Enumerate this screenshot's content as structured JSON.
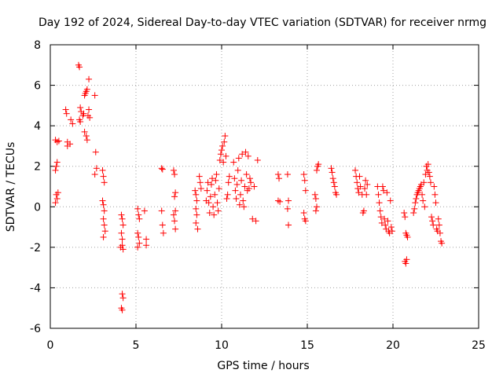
{
  "chart_data": {
    "type": "scatter",
    "title": "Day 192 of 2024, Sidereal Day-to-day VTEC variation (SDTVAR) for receiver nrmg",
    "xlabel": "GPS time / hours",
    "ylabel": "SDTVAR / TECUs",
    "xlim": [
      0,
      25
    ],
    "ylim": [
      -6,
      8
    ],
    "xticks": [
      0,
      5,
      10,
      15,
      20,
      25
    ],
    "yticks": [
      -6,
      -4,
      -2,
      0,
      2,
      4,
      6,
      8
    ],
    "grid": true,
    "marker": "+",
    "color": "#ff0000",
    "series": [
      {
        "name": "SDTVAR",
        "points": [
          [
            0.3,
            1.8
          ],
          [
            0.35,
            2.0
          ],
          [
            0.4,
            2.2
          ],
          [
            0.3,
            3.3
          ],
          [
            0.4,
            3.2
          ],
          [
            0.5,
            3.25
          ],
          [
            0.35,
            0.6
          ],
          [
            0.4,
            0.4
          ],
          [
            0.45,
            0.7
          ],
          [
            0.3,
            0.2
          ],
          [
            0.9,
            4.8
          ],
          [
            0.95,
            4.6
          ],
          [
            1.0,
            3.2
          ],
          [
            1.0,
            3.0
          ],
          [
            1.2,
            4.3
          ],
          [
            1.3,
            4.1
          ],
          [
            1.15,
            3.1
          ],
          [
            1.65,
            7.0
          ],
          [
            1.7,
            6.9
          ],
          [
            1.75,
            4.9
          ],
          [
            1.7,
            4.3
          ],
          [
            1.75,
            4.2
          ],
          [
            1.8,
            4.7
          ],
          [
            1.9,
            4.5
          ],
          [
            1.95,
            4.6
          ],
          [
            2.0,
            5.5
          ],
          [
            2.05,
            5.6
          ],
          [
            2.1,
            5.7
          ],
          [
            2.15,
            5.8
          ],
          [
            2.2,
            4.5
          ],
          [
            2.25,
            4.8
          ],
          [
            2.3,
            4.4
          ],
          [
            2.0,
            3.7
          ],
          [
            2.1,
            3.5
          ],
          [
            2.15,
            3.3
          ],
          [
            2.25,
            6.3
          ],
          [
            2.6,
            5.5
          ],
          [
            2.65,
            2.7
          ],
          [
            2.7,
            1.9
          ],
          [
            2.6,
            1.6
          ],
          [
            3.05,
            1.8
          ],
          [
            3.1,
            1.5
          ],
          [
            3.15,
            1.2
          ],
          [
            3.05,
            0.3
          ],
          [
            3.1,
            0.1
          ],
          [
            3.15,
            -0.2
          ],
          [
            3.1,
            -0.6
          ],
          [
            3.15,
            -0.9
          ],
          [
            3.2,
            -1.2
          ],
          [
            3.1,
            -1.5
          ],
          [
            4.15,
            -0.4
          ],
          [
            4.2,
            -0.6
          ],
          [
            4.25,
            -0.9
          ],
          [
            4.15,
            -1.3
          ],
          [
            4.2,
            -1.6
          ],
          [
            4.2,
            -1.9
          ],
          [
            4.25,
            -2.1
          ],
          [
            4.1,
            -2.0
          ],
          [
            4.2,
            -4.3
          ],
          [
            4.25,
            -4.5
          ],
          [
            4.15,
            -5.0
          ],
          [
            4.2,
            -5.1
          ],
          [
            5.1,
            -0.1
          ],
          [
            5.15,
            -0.4
          ],
          [
            5.2,
            -0.6
          ],
          [
            5.1,
            -1.3
          ],
          [
            5.15,
            -1.5
          ],
          [
            5.2,
            -1.8
          ],
          [
            5.1,
            -2.0
          ],
          [
            5.5,
            -0.2
          ],
          [
            5.6,
            -1.6
          ],
          [
            5.6,
            -1.9
          ],
          [
            6.5,
            -0.2
          ],
          [
            6.55,
            -0.9
          ],
          [
            6.6,
            -1.3
          ],
          [
            6.5,
            1.9
          ],
          [
            6.55,
            1.85
          ],
          [
            7.2,
            1.8
          ],
          [
            7.25,
            1.6
          ],
          [
            7.3,
            0.7
          ],
          [
            7.25,
            0.5
          ],
          [
            7.3,
            -0.2
          ],
          [
            7.2,
            -0.4
          ],
          [
            7.25,
            -0.7
          ],
          [
            7.3,
            -1.1
          ],
          [
            8.45,
            0.8
          ],
          [
            8.5,
            0.6
          ],
          [
            8.55,
            0.3
          ],
          [
            8.5,
            -0.1
          ],
          [
            8.55,
            -0.4
          ],
          [
            8.5,
            -0.8
          ],
          [
            8.6,
            -1.1
          ],
          [
            8.7,
            1.5
          ],
          [
            8.75,
            1.2
          ],
          [
            8.8,
            0.9
          ],
          [
            9.1,
            0.3
          ],
          [
            9.15,
            0.8
          ],
          [
            9.2,
            1.2
          ],
          [
            9.25,
            0.2
          ],
          [
            9.3,
            -0.3
          ],
          [
            9.35,
            0.5
          ],
          [
            9.4,
            1.1
          ],
          [
            9.45,
            1.4
          ],
          [
            9.5,
            0.0
          ],
          [
            9.55,
            -0.4
          ],
          [
            9.6,
            0.6
          ],
          [
            9.65,
            1.3
          ],
          [
            9.7,
            1.6
          ],
          [
            9.75,
            0.2
          ],
          [
            9.8,
            -0.2
          ],
          [
            9.85,
            0.9
          ],
          [
            9.9,
            2.3
          ],
          [
            9.95,
            2.6
          ],
          [
            10.0,
            2.8
          ],
          [
            10.05,
            3.0
          ],
          [
            10.1,
            2.2
          ],
          [
            10.15,
            3.2
          ],
          [
            10.2,
            3.5
          ],
          [
            10.25,
            2.5
          ],
          [
            10.3,
            0.4
          ],
          [
            10.35,
            0.6
          ],
          [
            10.4,
            1.2
          ],
          [
            10.45,
            1.5
          ],
          [
            10.7,
            2.2
          ],
          [
            10.75,
            1.4
          ],
          [
            10.8,
            0.8
          ],
          [
            10.85,
            0.4
          ],
          [
            10.9,
            1.1
          ],
          [
            10.95,
            1.8
          ],
          [
            11.0,
            2.4
          ],
          [
            11.05,
            0.1
          ],
          [
            11.1,
            0.6
          ],
          [
            11.15,
            1.3
          ],
          [
            11.2,
            2.6
          ],
          [
            11.25,
            0.3
          ],
          [
            11.3,
            0.0
          ],
          [
            11.35,
            1.0
          ],
          [
            11.4,
            2.7
          ],
          [
            11.45,
            1.6
          ],
          [
            11.5,
            0.8
          ],
          [
            11.55,
            2.5
          ],
          [
            11.6,
            0.9
          ],
          [
            11.65,
            1.4
          ],
          [
            11.7,
            1.2
          ],
          [
            11.8,
            -0.6
          ],
          [
            11.9,
            1.0
          ],
          [
            12.0,
            -0.7
          ],
          [
            12.1,
            2.3
          ],
          [
            13.3,
            1.6
          ],
          [
            13.35,
            1.4
          ],
          [
            13.3,
            0.3
          ],
          [
            13.4,
            0.25
          ],
          [
            13.85,
            1.6
          ],
          [
            13.9,
            0.3
          ],
          [
            13.85,
            -0.1
          ],
          [
            13.9,
            -0.9
          ],
          [
            14.8,
            1.6
          ],
          [
            14.85,
            1.3
          ],
          [
            14.9,
            0.8
          ],
          [
            14.8,
            -0.3
          ],
          [
            14.85,
            -0.6
          ],
          [
            14.9,
            -0.7
          ],
          [
            15.45,
            0.6
          ],
          [
            15.5,
            0.4
          ],
          [
            15.55,
            0.0
          ],
          [
            15.5,
            -0.2
          ],
          [
            15.55,
            1.8
          ],
          [
            15.6,
            2.0
          ],
          [
            15.65,
            2.1
          ],
          [
            16.4,
            1.9
          ],
          [
            16.45,
            1.7
          ],
          [
            16.5,
            1.4
          ],
          [
            16.55,
            1.2
          ],
          [
            16.6,
            1.0
          ],
          [
            16.65,
            0.7
          ],
          [
            16.7,
            0.6
          ],
          [
            17.8,
            1.8
          ],
          [
            17.85,
            1.5
          ],
          [
            17.9,
            1.2
          ],
          [
            17.95,
            0.9
          ],
          [
            18.0,
            0.7
          ],
          [
            18.05,
            1.5
          ],
          [
            18.1,
            1.0
          ],
          [
            18.2,
            0.6
          ],
          [
            18.25,
            -0.3
          ],
          [
            18.3,
            -0.2
          ],
          [
            18.35,
            0.9
          ],
          [
            18.4,
            1.3
          ],
          [
            18.45,
            0.6
          ],
          [
            18.5,
            1.1
          ],
          [
            19.1,
            1.0
          ],
          [
            19.15,
            0.6
          ],
          [
            19.2,
            0.2
          ],
          [
            19.25,
            -0.2
          ],
          [
            19.3,
            -0.5
          ],
          [
            19.35,
            -0.8
          ],
          [
            19.4,
            1.0
          ],
          [
            19.45,
            0.8
          ],
          [
            19.5,
            -0.6
          ],
          [
            19.55,
            -0.9
          ],
          [
            19.6,
            -1.1
          ],
          [
            19.65,
            0.7
          ],
          [
            19.7,
            -0.7
          ],
          [
            19.75,
            -1.2
          ],
          [
            19.8,
            -1.3
          ],
          [
            19.85,
            0.3
          ],
          [
            19.9,
            -1.0
          ],
          [
            19.95,
            -1.2
          ],
          [
            20.65,
            -0.3
          ],
          [
            20.7,
            -0.5
          ],
          [
            20.75,
            -1.3
          ],
          [
            20.8,
            -1.4
          ],
          [
            20.85,
            -1.5
          ],
          [
            20.7,
            -2.7
          ],
          [
            20.75,
            -2.8
          ],
          [
            20.8,
            -2.6
          ],
          [
            21.2,
            -0.3
          ],
          [
            21.25,
            -0.1
          ],
          [
            21.3,
            0.2
          ],
          [
            21.35,
            0.4
          ],
          [
            21.4,
            0.6
          ],
          [
            21.45,
            0.7
          ],
          [
            21.5,
            0.8
          ],
          [
            21.55,
            0.9
          ],
          [
            21.6,
            1.0
          ],
          [
            21.65,
            1.1
          ],
          [
            21.7,
            0.6
          ],
          [
            21.75,
            0.3
          ],
          [
            21.8,
            1.2
          ],
          [
            21.85,
            0.0
          ],
          [
            21.9,
            1.6
          ],
          [
            21.95,
            2.0
          ],
          [
            22.0,
            1.8
          ],
          [
            22.05,
            2.1
          ],
          [
            22.1,
            1.7
          ],
          [
            22.15,
            1.5
          ],
          [
            22.2,
            1.2
          ],
          [
            22.25,
            -0.5
          ],
          [
            22.3,
            -0.7
          ],
          [
            22.35,
            -0.9
          ],
          [
            22.4,
            1.0
          ],
          [
            22.45,
            0.6
          ],
          [
            22.5,
            0.2
          ],
          [
            22.55,
            -1.1
          ],
          [
            22.6,
            -1.2
          ],
          [
            22.65,
            -0.6
          ],
          [
            22.7,
            -0.9
          ],
          [
            22.75,
            -1.3
          ],
          [
            22.8,
            -1.7
          ],
          [
            22.85,
            -1.8
          ]
        ]
      }
    ]
  }
}
